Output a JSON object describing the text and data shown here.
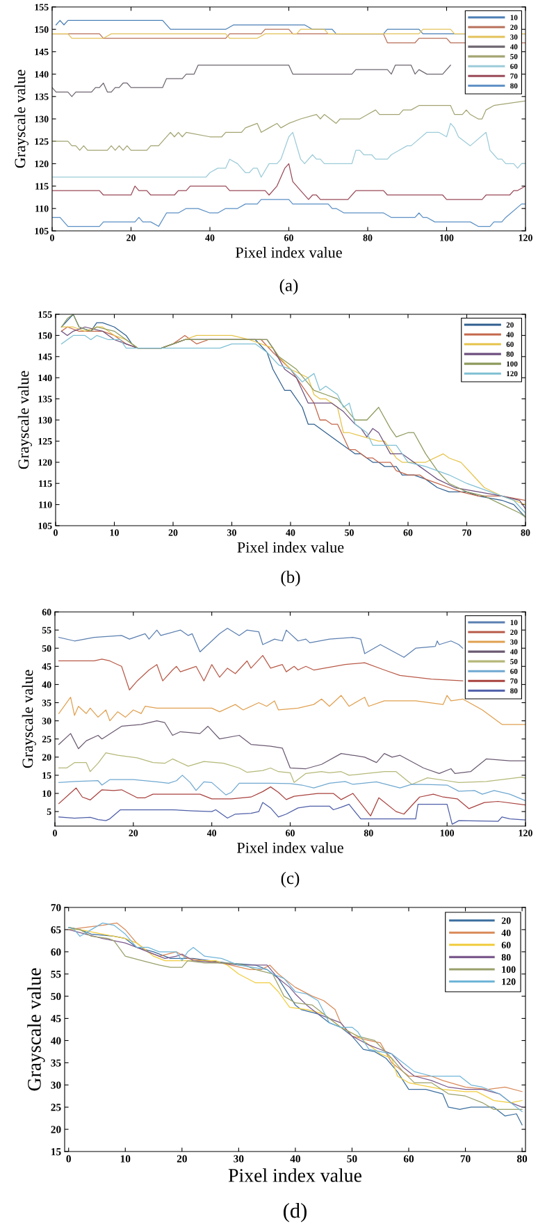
{
  "chart_data": [
    {
      "type": "line",
      "xlabel": "Pixel index value",
      "ylabel": "Grayscale value",
      "annotations": [
        "(a)"
      ],
      "xlim": [
        0,
        120
      ],
      "ylim": [
        105,
        155
      ],
      "xticks": [
        0,
        20,
        40,
        60,
        80,
        100,
        120
      ],
      "yticks": [
        105,
        110,
        115,
        120,
        125,
        130,
        135,
        140,
        145,
        150,
        155
      ],
      "legend": "top right",
      "grid": false,
      "series": [
        {
          "name": "10",
          "color": "#4a7fb5",
          "x": [
            1,
            2,
            3,
            4,
            28,
            30,
            44,
            46,
            64,
            66,
            71,
            72,
            84,
            85,
            93,
            94,
            120
          ],
          "values": [
            151,
            152,
            151,
            152,
            152,
            150,
            150,
            151,
            151,
            150,
            150,
            149,
            149,
            150,
            150,
            149,
            149
          ]
        },
        {
          "name": "20",
          "color": "#b8705a",
          "x": [
            0,
            12,
            13,
            44,
            45,
            53,
            54,
            60,
            61,
            84,
            85,
            92,
            93,
            100,
            101,
            120
          ],
          "values": [
            149,
            149,
            148,
            148,
            149,
            149,
            150,
            150,
            149,
            149,
            147,
            147,
            148,
            148,
            147,
            147
          ]
        },
        {
          "name": "30",
          "color": "#e3c25a",
          "x": [
            0,
            4,
            5,
            13,
            15,
            44,
            45,
            52,
            54,
            62,
            63,
            69,
            70,
            93,
            94,
            101,
            102,
            120
          ],
          "values": [
            149,
            149,
            148,
            148,
            149,
            149,
            148,
            148,
            149,
            149,
            150,
            150,
            149,
            149,
            150,
            150,
            149,
            149
          ]
        },
        {
          "name": "40",
          "color": "#6e6670",
          "x": [
            0,
            1,
            4,
            5,
            6,
            10,
            11,
            12,
            13,
            14,
            15,
            16,
            17,
            18,
            19,
            20,
            28,
            29,
            33,
            34,
            36,
            37,
            60,
            61,
            76,
            77,
            85,
            86,
            87,
            91,
            92,
            93,
            95,
            99,
            101
          ],
          "values": [
            137,
            136,
            136,
            135,
            136,
            136,
            137,
            137,
            138,
            136,
            136,
            137,
            137,
            138,
            138,
            137,
            137,
            139,
            139,
            140,
            140,
            142,
            142,
            140,
            140,
            141,
            141,
            140,
            142,
            142,
            140,
            141,
            140,
            140,
            142
          ]
        },
        {
          "name": "50",
          "color": "#a3a472",
          "x": [
            0,
            4,
            5,
            6,
            7,
            8,
            9,
            14,
            15,
            16,
            17,
            18,
            19,
            20,
            24,
            25,
            27,
            28,
            30,
            31,
            32,
            33,
            34,
            40,
            43,
            44,
            48,
            49,
            52,
            53,
            55,
            57,
            58,
            60,
            63,
            67,
            68,
            69,
            72,
            73,
            78,
            80,
            82,
            83,
            88,
            89,
            91,
            93,
            101,
            102,
            104,
            105,
            106,
            108,
            109,
            110,
            112,
            120
          ],
          "values": [
            125,
            125,
            124,
            124,
            123,
            124,
            123,
            123,
            124,
            123,
            124,
            123,
            124,
            123,
            123,
            124,
            124,
            125,
            127,
            126,
            127,
            126,
            127,
            126,
            126,
            127,
            127,
            128,
            129,
            127,
            128,
            129,
            128,
            129,
            130,
            131,
            130,
            131,
            129,
            130,
            130,
            131,
            132,
            131,
            131,
            132,
            132,
            133,
            133,
            131,
            131,
            132,
            131,
            130,
            130,
            132,
            133,
            134
          ]
        },
        {
          "name": "60",
          "color": "#9ccbd8",
          "x": [
            0,
            39,
            40,
            42,
            44,
            45,
            47,
            48,
            49,
            50,
            51,
            52,
            53,
            55,
            57,
            58,
            60,
            61,
            63,
            64,
            66,
            67,
            68,
            69,
            76,
            77,
            78,
            79,
            81,
            82,
            85,
            86,
            88,
            90,
            91,
            95,
            98,
            100,
            101,
            102,
            103,
            106,
            110,
            111,
            112,
            113,
            114,
            115,
            117,
            118,
            119,
            120
          ],
          "values": [
            117,
            117,
            118,
            119,
            119,
            121,
            120,
            119,
            118,
            118,
            119,
            119,
            117,
            120,
            120,
            121,
            126,
            127,
            121,
            120,
            122,
            121,
            121,
            120,
            120,
            123,
            123,
            122,
            122,
            121,
            121,
            122,
            123,
            124,
            124,
            127,
            127,
            126,
            129,
            128,
            126,
            124,
            127,
            123,
            122,
            121,
            121,
            120,
            120,
            119,
            120,
            120
          ]
        },
        {
          "name": "70",
          "color": "#9a4a58",
          "x": [
            0,
            12,
            13,
            20,
            21,
            22,
            24,
            25,
            31,
            32,
            34,
            35,
            44,
            45,
            54,
            55,
            57,
            59,
            60,
            61,
            63,
            65,
            66,
            67,
            68,
            75,
            77,
            84,
            85,
            99,
            100,
            109,
            110,
            116,
            117,
            118,
            120
          ],
          "values": [
            114,
            114,
            113,
            113,
            115,
            114,
            114,
            113,
            113,
            114,
            114,
            115,
            115,
            114,
            114,
            113,
            115,
            119,
            120,
            116,
            114,
            112,
            113,
            113,
            112,
            112,
            114,
            114,
            113,
            113,
            112,
            112,
            113,
            113,
            114,
            114,
            115
          ]
        },
        {
          "name": "80",
          "color": "#5b8fc4",
          "x": [
            0,
            2,
            4,
            12,
            13,
            21,
            22,
            23,
            25,
            27,
            29,
            32,
            34,
            37,
            40,
            42,
            44,
            47,
            49,
            52,
            53,
            60,
            61,
            70,
            71,
            72,
            74,
            84,
            86,
            92,
            93,
            94,
            95,
            97,
            106,
            108,
            111,
            112,
            114,
            115,
            119,
            120
          ],
          "values": [
            108,
            108,
            106,
            106,
            107,
            107,
            108,
            107,
            107,
            106,
            109,
            109,
            110,
            110,
            109,
            109,
            110,
            110,
            111,
            111,
            112,
            112,
            111,
            111,
            110,
            110,
            109,
            109,
            108,
            108,
            109,
            108,
            108,
            107,
            107,
            106,
            106,
            107,
            107,
            108,
            111,
            111
          ]
        }
      ]
    },
    {
      "type": "line",
      "xlabel": "Pixel index value",
      "ylabel": "Grayscale value",
      "annotations": [
        "(b)"
      ],
      "xlim": [
        0,
        80
      ],
      "ylim": [
        105,
        155
      ],
      "xticks": [
        0,
        10,
        20,
        30,
        40,
        50,
        60,
        70,
        80
      ],
      "yticks": [
        105,
        110,
        115,
        120,
        125,
        130,
        135,
        140,
        145,
        150,
        155
      ],
      "legend": "top right",
      "grid": false,
      "series": [
        {
          "name": "20",
          "color": "#2f5f8f",
          "x": [
            1,
            3,
            4,
            6,
            7,
            8,
            10,
            12,
            13,
            14,
            18,
            20,
            22,
            34,
            36,
            37,
            39,
            40,
            42,
            43,
            44,
            48,
            51,
            52,
            54,
            55,
            56,
            58,
            59,
            61,
            63,
            65,
            67,
            70,
            72,
            76,
            78,
            80
          ],
          "values": [
            152,
            155,
            152,
            151,
            153,
            153,
            152,
            150,
            148,
            147,
            147,
            148,
            149,
            149,
            146,
            142,
            137,
            137,
            133,
            129,
            129,
            125,
            122,
            122,
            120,
            120,
            119,
            119,
            117,
            117,
            116,
            114,
            113,
            113,
            112,
            111,
            110,
            107
          ]
        },
        {
          "name": "40",
          "color": "#c4674b",
          "x": [
            1,
            2,
            4,
            8,
            10,
            12,
            14,
            18,
            20,
            22,
            24,
            26,
            35,
            37,
            40,
            42,
            44,
            45,
            46,
            47,
            48,
            49,
            50,
            51,
            53,
            54,
            55,
            57,
            58,
            60,
            62,
            63,
            65,
            67,
            69,
            72,
            76,
            80
          ],
          "values": [
            151,
            152,
            151,
            151,
            150,
            148,
            147,
            147,
            148,
            150,
            148,
            149,
            149,
            146,
            142,
            138,
            134,
            130,
            130,
            129,
            129,
            126,
            123,
            123,
            121,
            121,
            120,
            120,
            118,
            117,
            117,
            116,
            115,
            114,
            113,
            112,
            112,
            111
          ]
        },
        {
          "name": "60",
          "color": "#e6c34a",
          "x": [
            1,
            3,
            5,
            7,
            8,
            10,
            12,
            14,
            18,
            20,
            22,
            24,
            30,
            33,
            37,
            38,
            40,
            43,
            44,
            45,
            46,
            48,
            49,
            50,
            55,
            56,
            57,
            58,
            59,
            61,
            63,
            66,
            67,
            69,
            71,
            73,
            76,
            80
          ],
          "values": [
            152,
            152,
            151,
            152,
            152,
            150,
            149,
            147,
            147,
            148,
            149,
            150,
            150,
            149,
            147,
            145,
            142,
            140,
            136,
            135,
            135,
            133,
            127,
            127,
            125,
            125,
            123,
            121,
            120,
            120,
            120,
            122,
            121,
            120,
            117,
            114,
            112,
            110
          ]
        },
        {
          "name": "80",
          "color": "#6d4f7e",
          "x": [
            1,
            2,
            3,
            5,
            8,
            10,
            12,
            14,
            18,
            22,
            36,
            37,
            39,
            41,
            42,
            43,
            47,
            49,
            51,
            52,
            53,
            54,
            55,
            57,
            59,
            60,
            62,
            64,
            65,
            68,
            72,
            76,
            79,
            80
          ],
          "values": [
            151,
            150,
            151,
            152,
            151,
            149,
            148,
            147,
            147,
            149,
            149,
            147,
            142,
            140,
            137,
            134,
            134,
            132,
            129,
            128,
            126,
            128,
            127,
            122,
            122,
            121,
            119,
            117,
            116,
            114,
            113,
            112,
            111,
            109
          ]
        },
        {
          "name": "100",
          "color": "#8c9a5c",
          "x": [
            1,
            2,
            3,
            4,
            6,
            7,
            10,
            12,
            14,
            18,
            20,
            22,
            36,
            37,
            38,
            41,
            44,
            46,
            48,
            51,
            53,
            55,
            57,
            58,
            60,
            61,
            63,
            65,
            67,
            70,
            73,
            76,
            79,
            80
          ],
          "values": [
            152,
            154,
            155,
            152,
            151,
            152,
            151,
            149,
            147,
            147,
            148,
            149,
            149,
            147,
            145,
            142,
            137,
            136,
            135,
            130,
            130,
            133,
            128,
            126,
            127,
            127,
            122,
            118,
            115,
            113,
            112,
            110,
            108,
            107
          ]
        },
        {
          "name": "120",
          "color": "#7fc0d4",
          "x": [
            1,
            3,
            5,
            6,
            7,
            9,
            11,
            12,
            28,
            30,
            34,
            36,
            38,
            40,
            42,
            44,
            45,
            46,
            48,
            49,
            50,
            51,
            53,
            54,
            58,
            60,
            63,
            67,
            70,
            74,
            78,
            80
          ],
          "values": [
            148,
            150,
            150,
            149,
            150,
            149,
            149,
            147,
            147,
            148,
            148,
            146,
            143,
            142,
            139,
            141,
            137,
            138,
            136,
            133,
            134,
            129,
            127,
            124,
            124,
            120,
            119,
            117,
            115,
            113,
            111,
            108
          ]
        }
      ]
    },
    {
      "type": "line",
      "xlabel": "Pixel index value",
      "ylabel": "Grayscale value",
      "annotations": [
        "(c)"
      ],
      "xlim": [
        0,
        120
      ],
      "ylim": [
        1,
        60
      ],
      "xticks": [
        0,
        20,
        40,
        60,
        80,
        100,
        120
      ],
      "yticks": [
        5,
        10,
        15,
        20,
        25,
        30,
        35,
        40,
        45,
        50,
        55,
        60
      ],
      "legend": "top right",
      "grid": false,
      "series": [
        {
          "name": "10",
          "color": "#5b7fb0",
          "x": [
            1,
            5,
            10,
            17,
            19,
            23,
            24,
            26,
            27,
            32,
            34,
            35,
            37,
            40,
            42,
            44,
            47,
            49,
            52,
            53,
            56,
            58,
            59,
            62,
            64,
            65,
            70,
            76,
            78,
            79,
            83,
            89,
            92,
            97,
            97.5,
            98,
            101,
            103,
            104
          ],
          "values": [
            53,
            52,
            53,
            53.5,
            52.5,
            54,
            52.5,
            55,
            53.5,
            55,
            53.5,
            54,
            49,
            52,
            54,
            55.5,
            53.5,
            55,
            54.5,
            51,
            52.5,
            52,
            55,
            52,
            52.5,
            51.5,
            52.5,
            53,
            52.5,
            48.5,
            51,
            47.5,
            50,
            50.5,
            52,
            51,
            52,
            51,
            50
          ]
        },
        {
          "name": "20",
          "color": "#b85a48",
          "x": [
            1,
            10,
            12,
            14,
            16,
            17,
            19,
            21,
            24,
            26,
            27.5,
            30,
            31,
            32,
            36,
            38,
            40,
            42,
            44,
            46,
            49,
            50,
            53,
            55,
            58,
            59,
            61,
            62,
            64,
            66,
            74,
            79,
            84,
            88,
            96,
            104
          ],
          "values": [
            46.5,
            46.5,
            47,
            46.5,
            45.5,
            45,
            38.5,
            41,
            44,
            45.5,
            41,
            44,
            45,
            43.5,
            45,
            41,
            45.5,
            42,
            44.5,
            43,
            46.5,
            44.5,
            48,
            44.5,
            45.5,
            43.5,
            45,
            44,
            45,
            44,
            45.5,
            46,
            44,
            42.5,
            41.5,
            41
          ]
        },
        {
          "name": "30",
          "color": "#e0a050",
          "x": [
            1,
            4,
            5,
            6,
            8,
            9,
            11,
            13,
            14,
            16,
            18,
            20,
            22,
            23,
            26,
            40,
            42,
            46,
            48,
            52,
            54,
            56,
            57,
            62,
            66,
            68,
            70,
            73,
            75,
            79,
            80,
            84,
            92,
            99,
            100,
            101,
            104,
            109,
            114,
            120
          ],
          "values": [
            32,
            36.5,
            31.5,
            34,
            32,
            33.5,
            31,
            33,
            30,
            32.5,
            31,
            33,
            32,
            34,
            33.5,
            33.5,
            32.5,
            34.5,
            33,
            35,
            34,
            35.5,
            33,
            33.5,
            34.5,
            36,
            34,
            37,
            34,
            36.5,
            34,
            35.5,
            35.5,
            34.5,
            37,
            35.5,
            36,
            33,
            29,
            29
          ]
        },
        {
          "name": "40",
          "color": "#6b5a72",
          "x": [
            1,
            4,
            6,
            8,
            11,
            12,
            17,
            22,
            26,
            28,
            30,
            32,
            37,
            39,
            42,
            47,
            50,
            55,
            58,
            60,
            64,
            68,
            73,
            79,
            82,
            84,
            86,
            88,
            94,
            98,
            101,
            102,
            106,
            110,
            116,
            120
          ],
          "values": [
            23.5,
            26.5,
            22.3,
            24.5,
            26,
            25,
            28.5,
            29,
            30,
            29.5,
            26,
            27,
            26.5,
            28.5,
            25,
            26,
            23.5,
            23,
            22.5,
            17,
            16.8,
            18,
            21,
            20,
            18.5,
            21,
            20,
            20.5,
            17,
            15.5,
            16.8,
            15.5,
            16,
            19.5,
            19,
            19
          ]
        },
        {
          "name": "50",
          "color": "#b5b878",
          "x": [
            1,
            3,
            5,
            8,
            9,
            11,
            13,
            16,
            21,
            25,
            28,
            30,
            34,
            38,
            43,
            47,
            49,
            53,
            55,
            57,
            60,
            61,
            64,
            68,
            70,
            73,
            75,
            84,
            87,
            91,
            95,
            100,
            103,
            110,
            119,
            120
          ],
          "values": [
            17,
            17,
            18.5,
            18.5,
            16,
            18.3,
            21.2,
            20.5,
            19.8,
            18.5,
            18.3,
            19.5,
            17.5,
            18.8,
            18.3,
            17,
            15.8,
            16.3,
            17,
            16,
            15.7,
            13,
            15.5,
            16,
            15.7,
            16,
            15,
            16,
            16,
            12.5,
            14.3,
            13.5,
            13,
            13.3,
            14.5,
            14.2
          ]
        },
        {
          "name": "60",
          "color": "#6fa8d0",
          "x": [
            1,
            5,
            11,
            12,
            14,
            20,
            26,
            29,
            31,
            32.5,
            34.5,
            36,
            38,
            40,
            43.6,
            45,
            47,
            55,
            60,
            63,
            66,
            70,
            74,
            76,
            82,
            88,
            91,
            96,
            100,
            103,
            107,
            109,
            112,
            116,
            120
          ],
          "values": [
            13,
            13.3,
            13.5,
            12.3,
            13.8,
            13.8,
            13.2,
            12.8,
            13.5,
            15,
            13,
            10.8,
            13.2,
            13,
            9.6,
            10.3,
            12.8,
            12.8,
            12.7,
            12.3,
            11.5,
            12.8,
            13.3,
            12.5,
            13.2,
            11.5,
            12.5,
            12.4,
            12.3,
            10.6,
            10.8,
            9.8,
            10.8,
            9.8,
            8
          ]
        },
        {
          "name": "70",
          "color": "#a8423e",
          "x": [
            1,
            5.4,
            7,
            9,
            12,
            15,
            17,
            21,
            23,
            25,
            37,
            40,
            45,
            50,
            53,
            55,
            57,
            59,
            61,
            67,
            71,
            73,
            76,
            80.5,
            82.6,
            87,
            89,
            93,
            96.5,
            99,
            102.6,
            105.6,
            109.5,
            113,
            120
          ],
          "values": [
            7.2,
            11.5,
            9,
            8.2,
            11,
            10.8,
            11,
            8.8,
            8.8,
            9.8,
            9.8,
            8.5,
            8.5,
            9,
            10.5,
            11.8,
            10.3,
            8.3,
            9.2,
            10,
            10,
            8.3,
            10,
            3.8,
            8.8,
            5,
            4.3,
            9,
            9.8,
            9,
            8.5,
            5.8,
            7.5,
            7.8,
            6.8
          ]
        },
        {
          "name": "80",
          "color": "#4e5ea8",
          "x": [
            1,
            5,
            9,
            11,
            13,
            14,
            16.7,
            30,
            35,
            40,
            41,
            44,
            46,
            50,
            52,
            53,
            55,
            57,
            59,
            62,
            65,
            70,
            71,
            73,
            75,
            78,
            88,
            92,
            92.6,
            100,
            101.3,
            103,
            113,
            114,
            116,
            120
          ],
          "values": [
            3.5,
            3.2,
            3.4,
            2.8,
            2.5,
            3,
            5.5,
            5.5,
            5.2,
            5,
            5.5,
            3.2,
            4.3,
            4.5,
            5,
            7.5,
            6,
            3.5,
            4.3,
            6,
            6.5,
            6.5,
            5.5,
            6.2,
            7,
            3,
            3,
            3,
            7,
            7,
            1.5,
            2.5,
            2.3,
            3.5,
            3,
            2.7
          ]
        }
      ]
    },
    {
      "type": "line",
      "xlabel": "Pixel index value",
      "ylabel": "Grayscale value",
      "annotations": [
        "(d)"
      ],
      "xlim": [
        -0.7,
        80.6
      ],
      "ylim": [
        15,
        70
      ],
      "xticks": [
        0,
        10,
        20,
        30,
        40,
        50,
        60,
        70,
        80
      ],
      "yticks": [
        15,
        20,
        25,
        30,
        35,
        40,
        45,
        50,
        55,
        60,
        65,
        70
      ],
      "legend": "top right",
      "grid": false,
      "series": [
        {
          "name": "20",
          "color": "#3b6e9e",
          "x": [
            0,
            2,
            4,
            8,
            10,
            12,
            15,
            18,
            22,
            25,
            28,
            33,
            35,
            37,
            38,
            40,
            41,
            44,
            46,
            48,
            50,
            52,
            54,
            56,
            58,
            60,
            63,
            66,
            67,
            69,
            71,
            75,
            77,
            79,
            80
          ],
          "values": [
            65.5,
            65,
            64,
            63.5,
            63,
            61,
            60,
            58.5,
            58.5,
            58,
            57.5,
            57,
            56,
            54,
            52,
            48,
            47,
            46,
            44,
            43,
            41,
            38,
            37.5,
            36,
            33,
            29,
            29,
            28,
            25,
            24.5,
            25,
            25,
            23,
            23.5,
            21
          ]
        },
        {
          "name": "40",
          "color": "#d98a5a",
          "x": [
            0,
            3,
            6,
            8.5,
            10,
            12,
            14,
            16,
            19,
            21,
            24,
            27,
            32,
            34,
            35.5,
            37,
            40,
            43,
            45,
            47,
            48,
            50,
            53,
            55,
            57,
            60,
            64,
            66,
            70,
            74,
            77,
            80
          ],
          "values": [
            65,
            65.5,
            66,
            66.5,
            65,
            62,
            60,
            59,
            60,
            58.5,
            58,
            57.5,
            56,
            56,
            57,
            55,
            52,
            50,
            49,
            47,
            44,
            41,
            40,
            39.5,
            35,
            32,
            32,
            31,
            29.5,
            29,
            29.5,
            28.5
          ]
        },
        {
          "name": "60",
          "color": "#f0cc3c",
          "x": [
            0,
            2,
            6,
            10,
            12,
            15,
            17,
            22,
            26,
            28,
            30,
            33,
            35.5,
            37,
            39,
            42,
            45,
            48,
            51,
            53,
            55,
            57,
            58,
            60,
            62,
            66,
            70,
            72,
            75,
            78,
            80
          ],
          "values": [
            65,
            65,
            64,
            63,
            62,
            59,
            58,
            58,
            58,
            57,
            55,
            53,
            53,
            51,
            47.5,
            47,
            46,
            43,
            41,
            39,
            37,
            36,
            32,
            30.5,
            30,
            29,
            28.5,
            28.5,
            26.5,
            26,
            26.5
          ]
        },
        {
          "name": "80",
          "color": "#7b5a8c",
          "x": [
            0,
            3,
            6,
            10,
            12,
            14,
            17,
            19,
            20,
            22,
            27,
            30,
            35,
            37,
            39,
            40,
            42,
            44,
            46,
            48,
            50,
            53,
            55,
            57,
            59,
            61,
            64,
            67,
            70,
            73,
            76,
            78,
            80
          ],
          "values": [
            65,
            64,
            63,
            62,
            61,
            60,
            58.5,
            59,
            59.5,
            58,
            57.5,
            57,
            57,
            54,
            52,
            50.5,
            48,
            46,
            45,
            44,
            41,
            39,
            38,
            37,
            34,
            32,
            31,
            29.5,
            29,
            29,
            28,
            26,
            25
          ]
        },
        {
          "name": "100",
          "color": "#9aa06a",
          "x": [
            0,
            2,
            4,
            7,
            8,
            10,
            13,
            16,
            18,
            20,
            21,
            24,
            28,
            31,
            33,
            36,
            38,
            40,
            43,
            45,
            48,
            51,
            54,
            57,
            59,
            61,
            64,
            67,
            70,
            73,
            75,
            78,
            80
          ],
          "values": [
            65.5,
            65,
            63.5,
            63,
            62.5,
            59,
            58,
            57,
            56.5,
            56.5,
            58,
            57.5,
            57.5,
            57,
            56,
            55,
            50,
            48.5,
            48,
            46,
            43,
            41,
            40,
            36,
            33,
            30.5,
            30.5,
            28,
            27.5,
            26,
            24.5,
            24.5,
            24.5
          ]
        },
        {
          "name": "120",
          "color": "#6fb5d8",
          "x": [
            0,
            1,
            2,
            4,
            6,
            8,
            10,
            12,
            14,
            16,
            19,
            20,
            21,
            22,
            24,
            27,
            30,
            35,
            36,
            38,
            40,
            42,
            44,
            46,
            48,
            50,
            51,
            53,
            55,
            57,
            59,
            61,
            64,
            66,
            69,
            71,
            73,
            76,
            78,
            80
          ],
          "values": [
            65.5,
            65,
            63.5,
            65,
            66.5,
            66,
            64,
            61,
            61,
            60,
            60,
            58,
            60,
            61,
            59,
            58.5,
            57,
            56,
            55,
            54,
            51,
            50.5,
            49,
            44,
            43,
            43,
            42,
            38,
            37.5,
            37,
            35,
            33,
            32,
            32,
            32,
            30,
            29.5,
            28,
            26,
            24
          ]
        }
      ]
    }
  ]
}
